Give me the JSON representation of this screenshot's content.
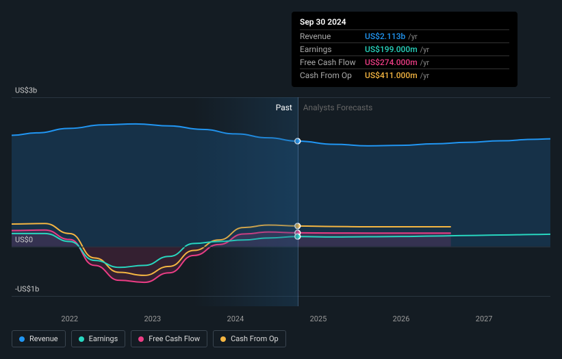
{
  "background_color": "#141c23",
  "grid_color": "#2a3540",
  "chart": {
    "y_axis": {
      "ticks": [
        {
          "label": "US$3b",
          "value": 3000
        },
        {
          "label": "US$0",
          "value": 0
        },
        {
          "label": "-US$1b",
          "value": -1000
        }
      ],
      "min": -1200,
      "max": 3200
    },
    "x_axis": {
      "ticks": [
        "2022",
        "2023",
        "2024",
        "2025",
        "2026",
        "2027"
      ],
      "min": 2021.3,
      "max": 2027.8
    },
    "sections": {
      "past_label": "Past",
      "forecast_label": "Analysts Forecasts",
      "split_x": 2024.75
    },
    "cursor_x": 2024.75,
    "series": [
      {
        "key": "revenue",
        "label": "Revenue",
        "color": "#2196f3",
        "fill": true,
        "fill_opacity": 0.18,
        "data": [
          [
            2021.3,
            2230
          ],
          [
            2021.6,
            2280
          ],
          [
            2022.0,
            2370
          ],
          [
            2022.4,
            2440
          ],
          [
            2022.8,
            2460
          ],
          [
            2023.2,
            2420
          ],
          [
            2023.6,
            2350
          ],
          [
            2024.0,
            2260
          ],
          [
            2024.4,
            2180
          ],
          [
            2024.75,
            2113
          ],
          [
            2025.2,
            2050
          ],
          [
            2025.6,
            2020
          ],
          [
            2026.0,
            2030
          ],
          [
            2026.4,
            2060
          ],
          [
            2026.8,
            2090
          ],
          [
            2027.2,
            2120
          ],
          [
            2027.6,
            2150
          ],
          [
            2027.8,
            2160
          ]
        ]
      },
      {
        "key": "cash_from_op",
        "label": "Cash From Op",
        "color": "#f5b642",
        "fill": false,
        "data": [
          [
            2021.3,
            450
          ],
          [
            2021.7,
            460
          ],
          [
            2022.0,
            260
          ],
          [
            2022.3,
            -230
          ],
          [
            2022.6,
            -520
          ],
          [
            2022.9,
            -580
          ],
          [
            2023.2,
            -400
          ],
          [
            2023.5,
            -80
          ],
          [
            2023.8,
            130
          ],
          [
            2024.1,
            380
          ],
          [
            2024.4,
            430
          ],
          [
            2024.75,
            411
          ],
          [
            2025.2,
            400
          ],
          [
            2025.6,
            395
          ],
          [
            2026.0,
            395
          ],
          [
            2026.4,
            395
          ],
          [
            2026.6,
            395
          ]
        ]
      },
      {
        "key": "free_cash_flow",
        "label": "Free Cash Flow",
        "color": "#ec3d85",
        "fill": true,
        "fill_opacity": 0.15,
        "data": [
          [
            2021.3,
            320
          ],
          [
            2021.7,
            330
          ],
          [
            2022.0,
            140
          ],
          [
            2022.3,
            -380
          ],
          [
            2022.6,
            -680
          ],
          [
            2022.9,
            -720
          ],
          [
            2023.2,
            -530
          ],
          [
            2023.5,
            -180
          ],
          [
            2023.8,
            40
          ],
          [
            2024.1,
            250
          ],
          [
            2024.4,
            290
          ],
          [
            2024.75,
            274
          ],
          [
            2025.2,
            270
          ],
          [
            2025.6,
            268
          ],
          [
            2026.0,
            268
          ],
          [
            2026.4,
            268
          ],
          [
            2026.6,
            268
          ]
        ]
      },
      {
        "key": "earnings",
        "label": "Earnings",
        "color": "#28d7c0",
        "fill": false,
        "data": [
          [
            2021.3,
            260
          ],
          [
            2021.7,
            260
          ],
          [
            2022.0,
            100
          ],
          [
            2022.3,
            -280
          ],
          [
            2022.6,
            -420
          ],
          [
            2022.9,
            -380
          ],
          [
            2023.2,
            -200
          ],
          [
            2023.5,
            60
          ],
          [
            2023.8,
            100
          ],
          [
            2024.1,
            130
          ],
          [
            2024.4,
            170
          ],
          [
            2024.75,
            199
          ],
          [
            2025.2,
            190
          ],
          [
            2025.6,
            195
          ],
          [
            2026.0,
            200
          ],
          [
            2026.4,
            210
          ],
          [
            2026.8,
            220
          ],
          [
            2027.2,
            230
          ],
          [
            2027.6,
            240
          ],
          [
            2027.8,
            245
          ]
        ]
      }
    ]
  },
  "tooltip": {
    "date": "Sep 30 2024",
    "unit": "/yr",
    "rows": [
      {
        "label": "Revenue",
        "value": "US$2.113b",
        "color": "#2196f3"
      },
      {
        "label": "Earnings",
        "value": "US$199.000m",
        "color": "#28d7c0"
      },
      {
        "label": "Free Cash Flow",
        "value": "US$274.000m",
        "color": "#ec3d85"
      },
      {
        "label": "Cash From Op",
        "value": "US$411.000m",
        "color": "#f5b642"
      }
    ]
  },
  "legend": [
    {
      "label": "Revenue",
      "color": "#2196f3"
    },
    {
      "label": "Earnings",
      "color": "#28d7c0"
    },
    {
      "label": "Free Cash Flow",
      "color": "#ec3d85"
    },
    {
      "label": "Cash From Op",
      "color": "#f5b642"
    }
  ]
}
